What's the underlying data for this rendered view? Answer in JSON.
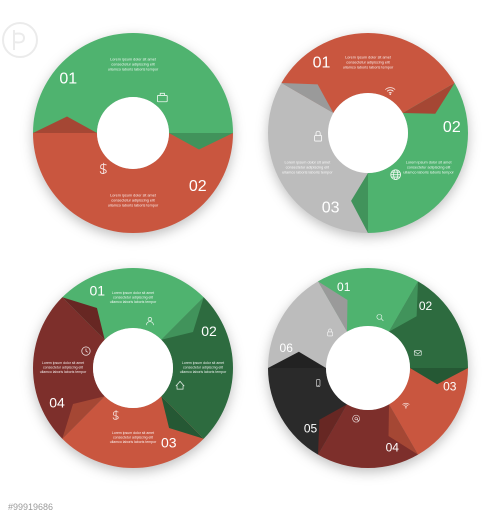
{
  "background_color": "#ffffff",
  "watermark_id": "#99919686",
  "lorem": "Lorem ipsum dolor sit amet, consectetur adipiscing elit, ullamco laboris laboris tempor",
  "shadow": {
    "blur": 6,
    "y": 4,
    "color": "rgba(0,0,0,0.25)"
  },
  "donuts": [
    {
      "id": "donut-2",
      "type": "segmented-ring",
      "segments": 2,
      "outer_r": 100,
      "inner_r": 36,
      "slices": [
        {
          "num": "01",
          "color": "#4fb36f",
          "icon": "briefcase"
        },
        {
          "num": "02",
          "color": "#c9563f",
          "icon": "dollar"
        }
      ],
      "num_fontsize": 16,
      "text_fontsize": 3.8,
      "text_color": "#ffffff"
    },
    {
      "id": "donut-3",
      "type": "segmented-ring",
      "segments": 3,
      "outer_r": 100,
      "inner_r": 40,
      "slices": [
        {
          "num": "01",
          "color": "#c9563f",
          "icon": "wifi"
        },
        {
          "num": "02",
          "color": "#4fb36f",
          "icon": "globe"
        },
        {
          "num": "03",
          "color": "#bcbcbc",
          "icon": "lock"
        }
      ],
      "num_fontsize": 16,
      "text_fontsize": 3.8,
      "text_color": "#ffffff"
    },
    {
      "id": "donut-4",
      "type": "segmented-ring",
      "segments": 4,
      "outer_r": 100,
      "inner_r": 40,
      "slices": [
        {
          "num": "01",
          "color": "#4fb36f",
          "icon": "user"
        },
        {
          "num": "02",
          "color": "#2d6b3f",
          "icon": "home"
        },
        {
          "num": "03",
          "color": "#c9563f",
          "icon": "dollar"
        },
        {
          "num": "04",
          "color": "#7d2f2b",
          "icon": "clock"
        }
      ],
      "num_fontsize": 14,
      "text_fontsize": 3.5,
      "text_color": "#ffffff"
    },
    {
      "id": "donut-6",
      "type": "segmented-ring",
      "segments": 6,
      "outer_r": 100,
      "inner_r": 42,
      "slices": [
        {
          "num": "01",
          "color": "#4fb36f",
          "icon": "search"
        },
        {
          "num": "02",
          "color": "#2d6b3f",
          "icon": "mail"
        },
        {
          "num": "03",
          "color": "#c9563f",
          "icon": "wifi"
        },
        {
          "num": "04",
          "color": "#7d2f2b",
          "icon": "at"
        },
        {
          "num": "05",
          "color": "#2a2a2a",
          "icon": "phone"
        },
        {
          "num": "06",
          "color": "#bcbcbc",
          "icon": "lock"
        }
      ],
      "num_fontsize": 12,
      "text_fontsize": 3.0,
      "text_color": "#ffffff"
    }
  ]
}
